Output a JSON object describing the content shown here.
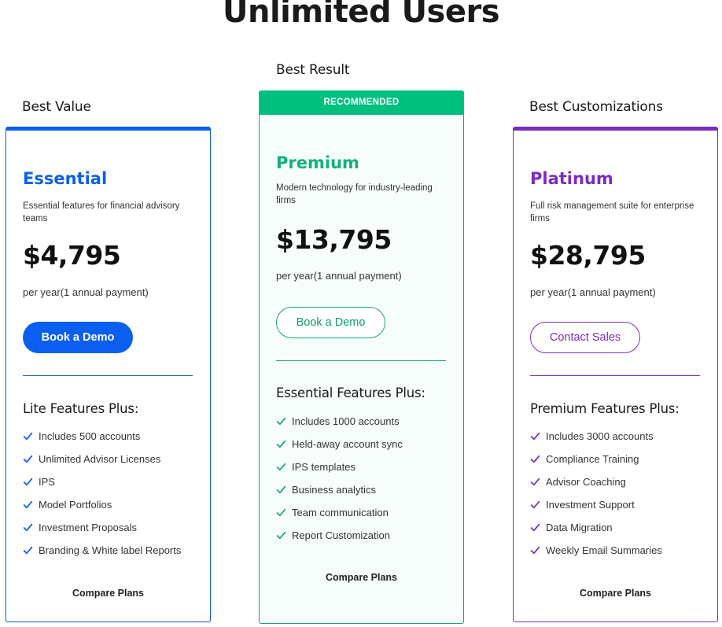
{
  "page": {
    "title": "Unlimited Users"
  },
  "plans": [
    {
      "tag": "Best Value",
      "name": "Essential",
      "description": "Essential features for financial advisory teams",
      "price": "$4,795",
      "billing": "per year(1 annual payment)",
      "cta_label": "Book a Demo",
      "features_heading": "Lite Features Plus:",
      "features": [
        "Includes 500 accounts",
        "Unlimited Advisor Licenses",
        "IPS",
        "Model Portfolios",
        "Investment Proposals",
        "Branding & White label Reports"
      ],
      "compare_label": "Compare Plans",
      "accent": "#0b5ff0"
    },
    {
      "tag": "Best Result",
      "badge": "RECOMMENDED",
      "name": "Premium",
      "description": "Modern technology for industry-leading firms",
      "price": "$13,795",
      "billing": "per year(1 annual payment)",
      "cta_label": "Book a Demo",
      "features_heading": "Essential Features Plus:",
      "features": [
        "Includes 1000 accounts",
        "Held-away account sync",
        "IPS templates",
        "Business analytics",
        "Team communication",
        "Report Customization"
      ],
      "compare_label": "Compare Plans",
      "accent": "#00c07f"
    },
    {
      "tag": "Best Customizations",
      "name": "Platinum",
      "description": "Full risk management suite for enterprise firms",
      "price": "$28,795",
      "billing": "per year(1 annual payment)",
      "cta_label": "Contact Sales",
      "features_heading": "Premium Features Plus:",
      "features": [
        "Includes 3000 accounts",
        "Compliance Training",
        "Advisor Coaching",
        "Investment Support",
        "Data Migration",
        "Weekly Email Summaries"
      ],
      "compare_label": "Compare Plans",
      "accent": "#7b2bc2"
    }
  ],
  "icons": {
    "feature_bullet": "checkmark-icon"
  }
}
